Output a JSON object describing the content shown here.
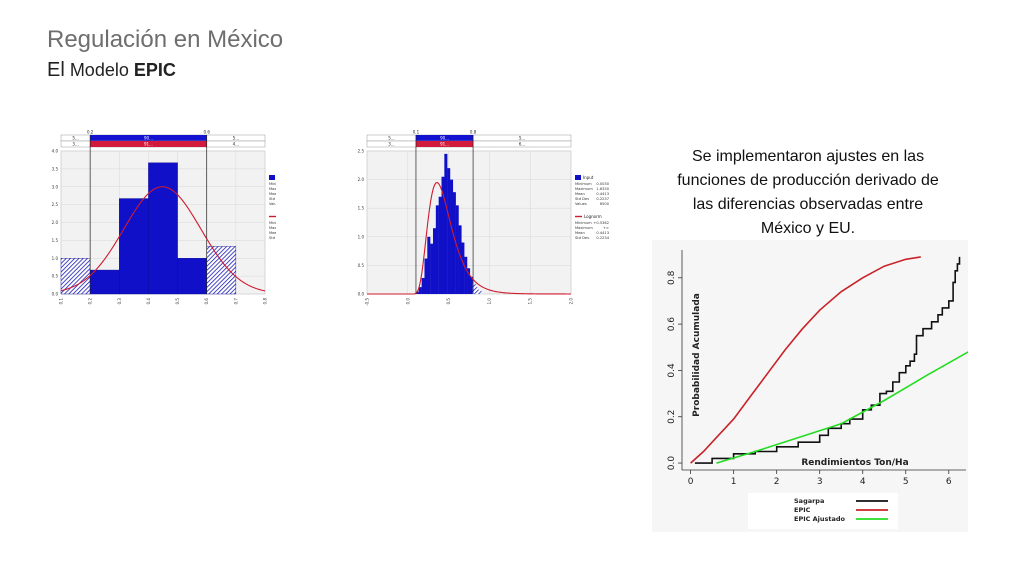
{
  "slide": {
    "title": "Regulación en México",
    "subtitle_prefix": "El",
    "subtitle_mid": "Modelo",
    "subtitle_bold": "EPIC",
    "note": "Se implementaron ajustes en las funciones de producción derivado de las diferencias observadas entre México y EU."
  },
  "chart_data": [
    {
      "type": "bar",
      "bar_color": "#1010c8",
      "curve_color": "#d01a2e",
      "top_band": {
        "left": "5...",
        "mid": "90...",
        "right": "5..."
      },
      "bottom_band": {
        "left": "3...",
        "mid": "91...",
        "right": "4..."
      },
      "marker_labels": [
        "0.2",
        "0.6"
      ],
      "bins": [
        [
          0.1,
          0.2,
          1.0
        ],
        [
          0.2,
          0.3,
          0.67
        ],
        [
          0.3,
          0.4,
          2.67
        ],
        [
          0.4,
          0.5,
          3.67
        ],
        [
          0.5,
          0.6,
          1.0
        ],
        [
          0.6,
          0.7,
          1.33
        ]
      ],
      "normal": {
        "mean": 0.4478,
        "sd": 0.1321,
        "peak": 3.0
      },
      "xlim": [
        0.1,
        0.8
      ],
      "ylim": [
        0,
        4.0
      ],
      "xticks": [
        "0.1",
        "0.2",
        "0.3",
        "0.4",
        "0.5",
        "0.6",
        "0.7",
        "0.8"
      ],
      "yticks": [
        "0.0",
        "0.5",
        "1.0",
        "1.5",
        "2.0",
        "2.5",
        "3.0",
        "3.5",
        "4.0"
      ],
      "legend": {
        "input_label": "Input",
        "input_stats": [
          [
            "Minimum",
            "0.1400"
          ],
          [
            "Maximum",
            "0.7200"
          ],
          [
            "Mean",
            "0.4478"
          ],
          [
            "Std Dev",
            "0.1321"
          ],
          [
            "Values",
            "31"
          ]
        ],
        "fit_label": "Normal",
        "fit_stats": [
          [
            "Minimum",
            "-∞"
          ],
          [
            "Maximum",
            "+∞"
          ],
          [
            "Mean",
            "0.4478"
          ],
          [
            "Std Dev",
            "0.1321"
          ]
        ]
      }
    },
    {
      "type": "bar",
      "bar_color": "#1010c8",
      "curve_color": "#d01a2e",
      "top_band": {
        "left": "5...",
        "mid": "90...",
        "right": "5..."
      },
      "bottom_band": {
        "left": "3...",
        "mid": "91...",
        "right": "6..."
      },
      "marker_labels": [
        "0.1",
        "0.8"
      ],
      "lognormal": {
        "mu": -0.87,
        "sigma": 0.4,
        "peak": 1.95
      },
      "histogram_heights": [
        0.04,
        0.12,
        0.28,
        0.62,
        1.0,
        0.88,
        1.15,
        1.55,
        1.7,
        2.05,
        2.45,
        2.2,
        2.0,
        1.78,
        1.55,
        1.2,
        0.9,
        0.65,
        0.45,
        0.3,
        0.18,
        0.12,
        0.06
      ],
      "hist_range": [
        0.1,
        0.9
      ],
      "xlim": [
        -0.5,
        2.0
      ],
      "ylim": [
        0,
        2.5
      ],
      "xticks": [
        "-0.5",
        "0.0",
        "0.5",
        "1.0",
        "1.5",
        "2.0"
      ],
      "yticks": [
        "0.0",
        "0.5",
        "1.0",
        "1.5",
        "2.0",
        "2.5"
      ],
      "legend": {
        "input_label": "Input",
        "input_stats": [
          [
            "Minimum",
            "0.0030"
          ],
          [
            "Maximum",
            "1.6330"
          ],
          [
            "Mean",
            "0.4413"
          ],
          [
            "Std Dev",
            "0.2237"
          ],
          [
            "Values",
            "6500"
          ]
        ],
        "fit_label": "Lognorm",
        "fit_stats": [
          [
            "Minimum",
            "+0.5362"
          ],
          [
            "Maximum",
            "+∞"
          ],
          [
            "Mean",
            "0.4413"
          ],
          [
            "Std Dev",
            "0.2234"
          ]
        ]
      }
    },
    {
      "type": "line",
      "xlabel": "Rendimientos Ton/Ha",
      "ylabel": "Probabilidad Acumulada",
      "xlim": [
        -0.2,
        6.4
      ],
      "ylim": [
        -0.03,
        0.92
      ],
      "xticks": [
        "0",
        "1",
        "2",
        "3",
        "4",
        "5",
        "6"
      ],
      "yticks": [
        "0.0",
        "0.2",
        "0.4",
        "0.6",
        "0.8"
      ],
      "series": [
        {
          "name": "Sagarpa",
          "color": "#111111",
          "x": [
            0.1,
            0.5,
            1.0,
            1.5,
            2.0,
            2.5,
            3.0,
            3.2,
            3.5,
            3.7,
            4.0,
            4.2,
            4.4,
            4.55,
            4.7,
            4.85,
            5.0,
            5.1,
            5.2,
            5.25,
            5.4,
            5.6,
            5.75,
            5.85,
            6.0,
            6.1,
            6.15,
            6.2,
            6.25
          ],
          "y": [
            0.0,
            0.02,
            0.04,
            0.05,
            0.07,
            0.09,
            0.12,
            0.15,
            0.17,
            0.19,
            0.23,
            0.25,
            0.3,
            0.31,
            0.35,
            0.39,
            0.42,
            0.44,
            0.47,
            0.55,
            0.58,
            0.61,
            0.64,
            0.67,
            0.7,
            0.78,
            0.83,
            0.86,
            0.89
          ]
        },
        {
          "name": "EPIC",
          "color": "#c8232a",
          "x": [
            0.0,
            0.3,
            0.6,
            1.0,
            1.4,
            1.8,
            2.2,
            2.6,
            3.0,
            3.5,
            4.0,
            4.5,
            5.0,
            5.35
          ],
          "y": [
            0.0,
            0.05,
            0.11,
            0.19,
            0.29,
            0.39,
            0.49,
            0.58,
            0.66,
            0.74,
            0.8,
            0.85,
            0.88,
            0.89
          ]
        },
        {
          "name": "EPIC Ajustado",
          "color": "#22dd22",
          "x": [
            0.6,
            1.5,
            2.5,
            3.5,
            4.5,
            5.5,
            6.45
          ],
          "y": [
            0.0,
            0.05,
            0.11,
            0.17,
            0.27,
            0.38,
            0.48
          ]
        }
      ]
    }
  ]
}
